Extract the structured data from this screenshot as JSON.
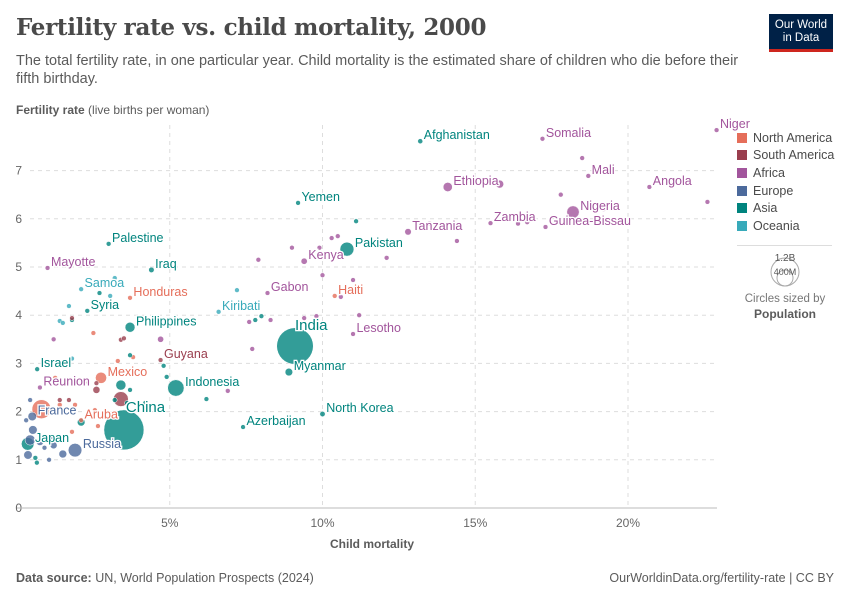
{
  "header": {
    "title": "Fertility rate vs. child mortality, 2000",
    "subtitle": "The total fertility rate, in one particular year. Child mortality is the estimated share of children who die before their fifth birthday.",
    "logo_line1": "Our World",
    "logo_line2": "in Data"
  },
  "footer": {
    "source_label": "Data source:",
    "source": "UN, World Population Prospects (2024)",
    "link": "OurWorldinData.org/fertility-rate | CC BY"
  },
  "legend": {
    "items": [
      {
        "label": "North America",
        "color": "#e56e5a"
      },
      {
        "label": "South America",
        "color": "#9a3e4e"
      },
      {
        "label": "Africa",
        "color": "#a2559c"
      },
      {
        "label": "Europe",
        "color": "#4c6a9c"
      },
      {
        "label": "Asia",
        "color": "#00847e"
      },
      {
        "label": "Oceania",
        "color": "#38aaba"
      }
    ],
    "size_large": "1.2B",
    "size_small": "400M",
    "size_note": "Circles sized by",
    "size_var": "Population"
  },
  "chart_data": {
    "type": "scatter",
    "title": "Fertility rate vs. child mortality, 2000",
    "xlabel": "Child mortality",
    "ylabel_bold": "Fertility rate",
    "ylabel_unit": "(live births per woman)",
    "xlim": [
      0,
      23
    ],
    "ylim": [
      0,
      7.85
    ],
    "xticks": [
      {
        "v": 5,
        "label": "5%"
      },
      {
        "v": 10,
        "label": "10%"
      },
      {
        "v": 15,
        "label": "15%"
      },
      {
        "v": 20,
        "label": "20%"
      }
    ],
    "yticks": [
      {
        "v": 0,
        "label": "0"
      },
      {
        "v": 1,
        "label": "1"
      },
      {
        "v": 2,
        "label": "2"
      },
      {
        "v": 3,
        "label": "3"
      },
      {
        "v": 4,
        "label": "4"
      },
      {
        "v": 5,
        "label": "5"
      },
      {
        "v": 6,
        "label": "6"
      },
      {
        "v": 7,
        "label": "7"
      }
    ],
    "grid": true,
    "size_by": "Population",
    "points": [
      {
        "label": "Afghanistan",
        "x": 13.2,
        "y": 7.61,
        "region": "Asia",
        "pop": 20
      },
      {
        "label": "Somalia",
        "x": 17.2,
        "y": 7.66,
        "region": "Africa",
        "pop": 8
      },
      {
        "label": "Niger",
        "x": 22.9,
        "y": 7.84,
        "region": "Africa",
        "pop": 11
      },
      {
        "label": "Mali",
        "x": 18.7,
        "y": 6.89,
        "region": "Africa",
        "pop": 11
      },
      {
        "label": "",
        "x": 18.5,
        "y": 7.26,
        "region": "Africa",
        "pop": 8
      },
      {
        "label": "Angola",
        "x": 20.7,
        "y": 6.66,
        "region": "Africa",
        "pop": 16
      },
      {
        "label": "Ethiopia",
        "x": 14.1,
        "y": 6.66,
        "region": "Africa",
        "pop": 67
      },
      {
        "label": "",
        "x": 15.8,
        "y": 6.72,
        "region": "Africa",
        "pop": 50
      },
      {
        "label": "Nigeria",
        "x": 18.2,
        "y": 6.14,
        "region": "Africa",
        "pop": 122
      },
      {
        "label": "Zambia",
        "x": 15.5,
        "y": 5.91,
        "region": "Africa",
        "pop": 10
      },
      {
        "label": "Guinea-Bissau",
        "x": 17.3,
        "y": 5.83,
        "region": "Africa",
        "pop": 1.2
      },
      {
        "label": "Tanzania",
        "x": 12.8,
        "y": 5.73,
        "region": "Africa",
        "pop": 34
      },
      {
        "label": "Yemen",
        "x": 9.2,
        "y": 6.33,
        "region": "Asia",
        "pop": 18
      },
      {
        "label": "Pakistan",
        "x": 10.8,
        "y": 5.37,
        "region": "Asia",
        "pop": 154
      },
      {
        "label": "Kenya",
        "x": 9.4,
        "y": 5.12,
        "region": "Africa",
        "pop": 31
      },
      {
        "label": "Palestine",
        "x": 3.0,
        "y": 5.48,
        "region": "Asia",
        "pop": 3
      },
      {
        "label": "Iraq",
        "x": 4.4,
        "y": 4.94,
        "region": "Asia",
        "pop": 24
      },
      {
        "label": "Mayotte",
        "x": 1.0,
        "y": 4.98,
        "region": "Africa",
        "pop": 0.2
      },
      {
        "label": "Samoa",
        "x": 2.1,
        "y": 4.54,
        "region": "Oceania",
        "pop": 0.2
      },
      {
        "label": "Honduras",
        "x": 3.7,
        "y": 4.36,
        "region": "North America",
        "pop": 6
      },
      {
        "label": "Syria",
        "x": 2.3,
        "y": 4.09,
        "region": "Asia",
        "pop": 16
      },
      {
        "label": "Philippines",
        "x": 3.7,
        "y": 3.75,
        "region": "Asia",
        "pop": 78
      },
      {
        "label": "Kiribati",
        "x": 6.6,
        "y": 4.07,
        "region": "Oceania",
        "pop": 0.1
      },
      {
        "label": "Gabon",
        "x": 8.2,
        "y": 4.46,
        "region": "Africa",
        "pop": 1.3
      },
      {
        "label": "Haiti",
        "x": 10.4,
        "y": 4.4,
        "region": "North America",
        "pop": 8.5
      },
      {
        "label": "India",
        "x": 9.1,
        "y": 3.36,
        "region": "Asia",
        "pop": 1060
      },
      {
        "label": "Myanmar",
        "x": 8.9,
        "y": 2.82,
        "region": "Asia",
        "pop": 46
      },
      {
        "label": "Lesotho",
        "x": 11.0,
        "y": 3.61,
        "region": "Africa",
        "pop": 2
      },
      {
        "label": "Guyana",
        "x": 4.7,
        "y": 3.07,
        "region": "South America",
        "pop": 0.8
      },
      {
        "label": "Israel",
        "x": 0.66,
        "y": 2.88,
        "region": "Asia",
        "pop": 6
      },
      {
        "label": "Mexico",
        "x": 2.75,
        "y": 2.7,
        "region": "North America",
        "pop": 99
      },
      {
        "label": "Indonesia",
        "x": 5.2,
        "y": 2.49,
        "region": "Asia",
        "pop": 214
      },
      {
        "label": "Reunion",
        "x": 0.75,
        "y": 2.5,
        "region": "Africa",
        "pop": 0.7
      },
      {
        "label": "China",
        "x": 3.5,
        "y": 1.62,
        "region": "Asia",
        "pop": 1270
      },
      {
        "label": "France",
        "x": 0.5,
        "y": 1.9,
        "region": "Europe",
        "pop": 59
      },
      {
        "label": "Aruba",
        "x": 2.1,
        "y": 1.82,
        "region": "North America",
        "pop": 0.1
      },
      {
        "label": "Japan",
        "x": 0.35,
        "y": 1.33,
        "region": "Asia",
        "pop": 127
      },
      {
        "label": "Russia",
        "x": 1.9,
        "y": 1.2,
        "region": "Europe",
        "pop": 146
      },
      {
        "label": "Azerbaijan",
        "x": 7.4,
        "y": 1.68,
        "region": "Asia",
        "pop": 8
      },
      {
        "label": "North Korea",
        "x": 10.0,
        "y": 1.95,
        "region": "Asia",
        "pop": 23
      },
      {
        "label": "",
        "x": 3.4,
        "y": 2.26,
        "region": "South America",
        "pop": 175
      },
      {
        "label": "",
        "x": 0.8,
        "y": 2.05,
        "region": "North America",
        "pop": 282
      },
      {
        "label": "",
        "x": 10.0,
        "y": 4.83,
        "region": "Africa",
        "pop": 3
      },
      {
        "label": "",
        "x": 11.0,
        "y": 4.73,
        "region": "Africa",
        "pop": 3
      },
      {
        "label": "",
        "x": 12.1,
        "y": 5.19,
        "region": "Africa",
        "pop": 4
      },
      {
        "label": "",
        "x": 14.4,
        "y": 5.54,
        "region": "Africa",
        "pop": 5
      },
      {
        "label": "",
        "x": 13.5,
        "y": 5.9,
        "region": "Africa",
        "pop": 5
      },
      {
        "label": "",
        "x": 9.9,
        "y": 5.4,
        "region": "Africa",
        "pop": 5
      },
      {
        "label": "",
        "x": 10.3,
        "y": 5.6,
        "region": "Africa",
        "pop": 10
      },
      {
        "label": "",
        "x": 10.5,
        "y": 5.64,
        "region": "Africa",
        "pop": 8
      },
      {
        "label": "",
        "x": 9.0,
        "y": 5.4,
        "region": "Africa",
        "pop": 4
      },
      {
        "label": "",
        "x": 7.9,
        "y": 5.15,
        "region": "Africa",
        "pop": 3
      },
      {
        "label": "",
        "x": 16.7,
        "y": 5.93,
        "region": "Africa",
        "pop": 10
      },
      {
        "label": "",
        "x": 16.8,
        "y": 6.0,
        "region": "Africa",
        "pop": 6
      },
      {
        "label": "",
        "x": 16.4,
        "y": 5.9,
        "region": "Africa",
        "pop": 12
      },
      {
        "label": "",
        "x": 17.8,
        "y": 6.5,
        "region": "Africa",
        "pop": 6
      },
      {
        "label": "",
        "x": 22.6,
        "y": 6.35,
        "region": "Africa",
        "pop": 5
      },
      {
        "label": "",
        "x": 19.2,
        "y": 6.2,
        "region": "Africa",
        "pop": 4
      },
      {
        "label": "",
        "x": 11.2,
        "y": 4.0,
        "region": "Africa",
        "pop": 3
      },
      {
        "label": "",
        "x": 9.8,
        "y": 3.98,
        "region": "Africa",
        "pop": 3
      },
      {
        "label": "",
        "x": 8.3,
        "y": 3.9,
        "region": "Africa",
        "pop": 2
      },
      {
        "label": "",
        "x": 7.6,
        "y": 3.86,
        "region": "Africa",
        "pop": 2
      },
      {
        "label": "",
        "x": 7.7,
        "y": 3.3,
        "region": "Africa",
        "pop": 2
      },
      {
        "label": "",
        "x": 6.9,
        "y": 2.43,
        "region": "Africa",
        "pop": 16
      },
      {
        "label": "",
        "x": 4.7,
        "y": 3.5,
        "region": "Africa",
        "pop": 30
      },
      {
        "label": "",
        "x": 10.6,
        "y": 4.38,
        "region": "Africa",
        "pop": 2
      },
      {
        "label": "",
        "x": 9.4,
        "y": 3.94,
        "region": "Africa",
        "pop": 3
      },
      {
        "label": "",
        "x": 1.2,
        "y": 3.5,
        "region": "Africa",
        "pop": 1
      },
      {
        "label": "",
        "x": 8.0,
        "y": 3.98,
        "region": "Asia",
        "pop": 18
      },
      {
        "label": "",
        "x": 7.8,
        "y": 3.9,
        "region": "Asia",
        "pop": 3
      },
      {
        "label": "",
        "x": 6.2,
        "y": 2.26,
        "region": "Asia",
        "pop": 3
      },
      {
        "label": "",
        "x": 4.9,
        "y": 2.72,
        "region": "Asia",
        "pop": 2
      },
      {
        "label": "",
        "x": 4.8,
        "y": 2.95,
        "region": "Asia",
        "pop": 2
      },
      {
        "label": "",
        "x": 3.7,
        "y": 3.17,
        "region": "Asia",
        "pop": 2
      },
      {
        "label": "",
        "x": 11.1,
        "y": 5.95,
        "region": "Asia",
        "pop": 2
      },
      {
        "label": "",
        "x": 2.7,
        "y": 4.46,
        "region": "Asia",
        "pop": 2
      },
      {
        "label": "",
        "x": 1.8,
        "y": 3.9,
        "region": "Asia",
        "pop": 2
      },
      {
        "label": "",
        "x": 3.2,
        "y": 2.24,
        "region": "Asia",
        "pop": 3
      },
      {
        "label": "",
        "x": 2.1,
        "y": 1.78,
        "region": "Asia",
        "pop": 47
      },
      {
        "label": "",
        "x": 4.2,
        "y": 2.18,
        "region": "Asia",
        "pop": 4
      },
      {
        "label": "",
        "x": 0.6,
        "y": 1.04,
        "region": "Asia",
        "pop": 2
      },
      {
        "label": "",
        "x": 0.65,
        "y": 0.94,
        "region": "Asia",
        "pop": 2
      },
      {
        "label": "",
        "x": 3.6,
        "y": 2.18,
        "region": "Asia",
        "pop": 5
      },
      {
        "label": "",
        "x": 3.4,
        "y": 2.55,
        "region": "Asia",
        "pop": 80
      },
      {
        "label": "",
        "x": 3.7,
        "y": 2.45,
        "region": "Asia",
        "pop": 2
      },
      {
        "label": "",
        "x": 2.85,
        "y": 4.67,
        "region": "Oceania",
        "pop": 0.5
      },
      {
        "label": "",
        "x": 3.2,
        "y": 4.77,
        "region": "Oceania",
        "pop": 0.2
      },
      {
        "label": "",
        "x": 1.7,
        "y": 4.19,
        "region": "Oceania",
        "pop": 0.2
      },
      {
        "label": "",
        "x": 1.4,
        "y": 3.88,
        "region": "Oceania",
        "pop": 0.2
      },
      {
        "label": "",
        "x": 1.5,
        "y": 3.84,
        "region": "Oceania",
        "pop": 0.2
      },
      {
        "label": "",
        "x": 1.8,
        "y": 3.1,
        "region": "Oceania",
        "pop": 0.2
      },
      {
        "label": "",
        "x": 3.05,
        "y": 4.4,
        "region": "Oceania",
        "pop": 0.2
      },
      {
        "label": "",
        "x": 7.2,
        "y": 4.52,
        "region": "Oceania",
        "pop": 0.5
      },
      {
        "label": "",
        "x": 4.6,
        "y": 3.82,
        "region": "Oceania",
        "pop": 0.3
      },
      {
        "label": "",
        "x": 1.8,
        "y": 3.94,
        "region": "South America",
        "pop": 1
      },
      {
        "label": "",
        "x": 3.4,
        "y": 3.49,
        "region": "South America",
        "pop": 2
      },
      {
        "label": "",
        "x": 3.5,
        "y": 3.52,
        "region": "South America",
        "pop": 2
      },
      {
        "label": "",
        "x": 2.2,
        "y": 2.6,
        "region": "South America",
        "pop": 5
      },
      {
        "label": "",
        "x": 2.6,
        "y": 2.59,
        "region": "South America",
        "pop": 12
      },
      {
        "label": "",
        "x": 2.6,
        "y": 2.45,
        "region": "South America",
        "pop": 40
      },
      {
        "label": "",
        "x": 1.7,
        "y": 2.24,
        "region": "South America",
        "pop": 4
      },
      {
        "label": "",
        "x": 1.4,
        "y": 2.24,
        "region": "South America",
        "pop": 3
      },
      {
        "label": "",
        "x": 2.5,
        "y": 3.63,
        "region": "North America",
        "pop": 2
      },
      {
        "label": "",
        "x": 3.8,
        "y": 3.13,
        "region": "North America",
        "pop": 3
      },
      {
        "label": "",
        "x": 3.3,
        "y": 3.05,
        "region": "North America",
        "pop": 3
      },
      {
        "label": "",
        "x": 1.25,
        "y": 2.7,
        "region": "North America",
        "pop": 2
      },
      {
        "label": "",
        "x": 1.4,
        "y": 2.14,
        "region": "North America",
        "pop": 2
      },
      {
        "label": "",
        "x": 1.9,
        "y": 2.14,
        "region": "North America",
        "pop": 2
      },
      {
        "label": "",
        "x": 2.55,
        "y": 2.03,
        "region": "North America",
        "pop": 2
      },
      {
        "label": "",
        "x": 2.65,
        "y": 1.7,
        "region": "North America",
        "pop": 2
      },
      {
        "label": "",
        "x": 1.8,
        "y": 1.58,
        "region": "North America",
        "pop": 1
      },
      {
        "label": "",
        "x": 0.3,
        "y": 1.82,
        "region": "Europe",
        "pop": 5
      },
      {
        "label": "",
        "x": 0.52,
        "y": 1.62,
        "region": "Europe",
        "pop": 59
      },
      {
        "label": "",
        "x": 0.43,
        "y": 1.41,
        "region": "Europe",
        "pop": 82
      },
      {
        "label": "",
        "x": 0.36,
        "y": 1.1,
        "region": "Europe",
        "pop": 57
      },
      {
        "label": "",
        "x": 0.75,
        "y": 1.37,
        "region": "Europe",
        "pop": 40
      },
      {
        "label": "",
        "x": 1.1,
        "y": 1.47,
        "region": "Europe",
        "pop": 10
      },
      {
        "label": "",
        "x": 1.5,
        "y": 1.12,
        "region": "Europe",
        "pop": 49
      },
      {
        "label": "",
        "x": 1.05,
        "y": 1.0,
        "region": "Europe",
        "pop": 10
      },
      {
        "label": "",
        "x": 0.43,
        "y": 2.24,
        "region": "Europe",
        "pop": 4
      },
      {
        "label": "",
        "x": 1.2,
        "y": 1.3,
        "region": "Europe",
        "pop": 38
      },
      {
        "label": "",
        "x": 0.9,
        "y": 1.25,
        "region": "Europe",
        "pop": 8
      }
    ]
  }
}
